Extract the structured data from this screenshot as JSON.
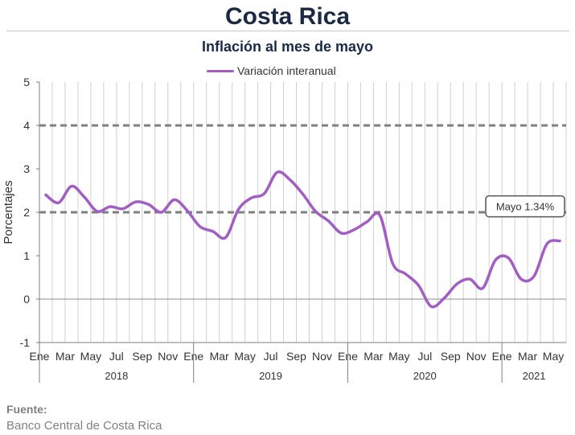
{
  "header": {
    "title": "Costa Rica",
    "subtitle": "Inflación al mes de mayo"
  },
  "source": {
    "heading": "Fuente:",
    "text": "Banco Central de Costa Rica"
  },
  "colors": {
    "series": "#a15fc2",
    "reference_lines": "#7f7f7f",
    "grid": "#d0d0d0"
  },
  "chart_data": {
    "type": "line",
    "title": "Inflación al mes de mayo",
    "ylabel": "Porcentajes",
    "xlabel": "",
    "ylim": [
      -1,
      5
    ],
    "yticks": [
      -1,
      0,
      1,
      2,
      3,
      4,
      5
    ],
    "grid": true,
    "legend_position": "top-center",
    "month_tick_labels": [
      "Ene",
      "Mar",
      "May",
      "Jul",
      "Sep",
      "Nov",
      "Ene",
      "Mar",
      "May",
      "Jul",
      "Sep",
      "Nov",
      "Ene",
      "Mar",
      "May",
      "Jul",
      "Sep",
      "Nov",
      "Ene",
      "Mar",
      "May"
    ],
    "years": [
      {
        "label": "2018",
        "months": 12
      },
      {
        "label": "2019",
        "months": 12
      },
      {
        "label": "2020",
        "months": 12
      },
      {
        "label": "2021",
        "months": 5
      }
    ],
    "reference_lines": [
      2,
      4
    ],
    "x": [
      "2018-01",
      "2018-02",
      "2018-03",
      "2018-04",
      "2018-05",
      "2018-06",
      "2018-07",
      "2018-08",
      "2018-09",
      "2018-10",
      "2018-11",
      "2018-12",
      "2019-01",
      "2019-02",
      "2019-03",
      "2019-04",
      "2019-05",
      "2019-06",
      "2019-07",
      "2019-08",
      "2019-09",
      "2019-10",
      "2019-11",
      "2019-12",
      "2020-01",
      "2020-02",
      "2020-03",
      "2020-04",
      "2020-05",
      "2020-06",
      "2020-07",
      "2020-08",
      "2020-09",
      "2020-10",
      "2020-11",
      "2020-12",
      "2021-01",
      "2021-02",
      "2021-03",
      "2021-04",
      "2021-05"
    ],
    "series": [
      {
        "name": "Variación interanual",
        "values": [
          2.4,
          2.22,
          2.6,
          2.35,
          2.02,
          2.13,
          2.08,
          2.24,
          2.18,
          2.0,
          2.29,
          2.04,
          1.67,
          1.56,
          1.42,
          2.07,
          2.33,
          2.43,
          2.92,
          2.75,
          2.42,
          2.02,
          1.8,
          1.52,
          1.6,
          1.78,
          1.93,
          0.82,
          0.58,
          0.32,
          -0.17,
          0.02,
          0.35,
          0.46,
          0.25,
          0.9,
          0.95,
          0.46,
          0.53,
          1.27,
          1.34
        ]
      }
    ],
    "annotation": {
      "label": "Mayo 1.34%",
      "x": "2021-05",
      "y": 1.34
    }
  }
}
